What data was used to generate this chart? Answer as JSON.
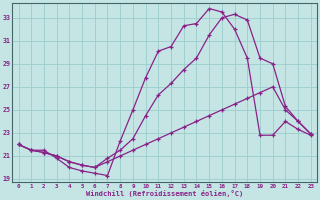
{
  "xlabel": "Windchill (Refroidissement éolien,°C)",
  "xlim": [
    0,
    23
  ],
  "ylim": [
    19,
    34
  ],
  "yticks": [
    19,
    21,
    23,
    25,
    27,
    29,
    31,
    33
  ],
  "xticks": [
    0,
    1,
    2,
    3,
    4,
    5,
    6,
    7,
    8,
    9,
    10,
    11,
    12,
    13,
    14,
    15,
    16,
    17,
    18,
    19,
    20,
    21,
    22,
    23
  ],
  "bg_color": "#c5e5e5",
  "grid_color": "#99cccc",
  "line_color": "#882288",
  "line1_y": [
    22.0,
    21.5,
    21.5,
    20.8,
    20.0,
    19.7,
    19.5,
    19.3,
    22.3,
    25.0,
    27.8,
    30.1,
    30.5,
    32.3,
    32.5,
    33.8,
    33.5,
    32.0,
    29.5,
    22.8,
    22.8,
    24.0,
    23.3,
    22.8
  ],
  "line2_y": [
    22.0,
    21.5,
    21.3,
    21.0,
    20.5,
    20.2,
    20.0,
    20.8,
    21.5,
    22.5,
    24.5,
    26.3,
    27.3,
    28.5,
    29.5,
    31.5,
    33.0,
    33.3,
    32.8,
    29.5,
    29.0,
    25.3,
    24.0,
    22.9
  ],
  "line3_y": [
    22.0,
    21.5,
    21.3,
    21.0,
    20.5,
    20.2,
    20.0,
    20.5,
    21.0,
    21.5,
    22.0,
    22.5,
    23.0,
    23.5,
    24.0,
    24.5,
    25.0,
    25.5,
    26.0,
    26.5,
    27.0,
    25.0,
    24.0,
    22.9
  ]
}
